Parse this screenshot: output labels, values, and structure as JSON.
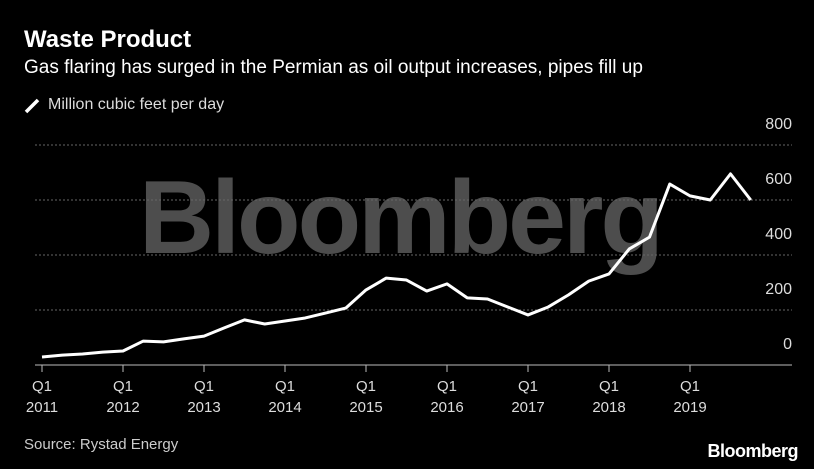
{
  "chart_data": {
    "type": "line",
    "title": "Waste Product",
    "subtitle": "Gas flaring has surged in the Permian as oil output increases, pipes fill up",
    "watermark": "Bloomberg",
    "source": "Source: Rystad Energy",
    "logo": "Bloomberg",
    "categories": [
      "Q1\n2011",
      null,
      null,
      null,
      "Q1\n2012",
      null,
      null,
      null,
      "Q1\n2013",
      null,
      null,
      null,
      "Q1\n2014",
      null,
      null,
      null,
      "Q1\n2015",
      null,
      null,
      null,
      "Q1\n2016",
      null,
      null,
      null,
      "Q1\n2017",
      null,
      null,
      null,
      "Q1\n2018",
      null,
      null,
      null,
      "Q1\n2019",
      null,
      null,
      null
    ],
    "series": [
      {
        "name": "Million cubic feet per day",
        "color": "#ffffff",
        "values": [
          29,
          36,
          40,
          47,
          51,
          87,
          84,
          95,
          105,
          135,
          164,
          149,
          160,
          171,
          189,
          207,
          273,
          316,
          309,
          269,
          295,
          244,
          240,
          211,
          182,
          211,
          255,
          305,
          331,
          422,
          465,
          658,
          615,
          600,
          695,
          600
        ]
      }
    ],
    "ylim": [
      0,
      800
    ],
    "yticks": [
      0,
      200,
      400,
      600,
      800
    ],
    "grid": true
  }
}
